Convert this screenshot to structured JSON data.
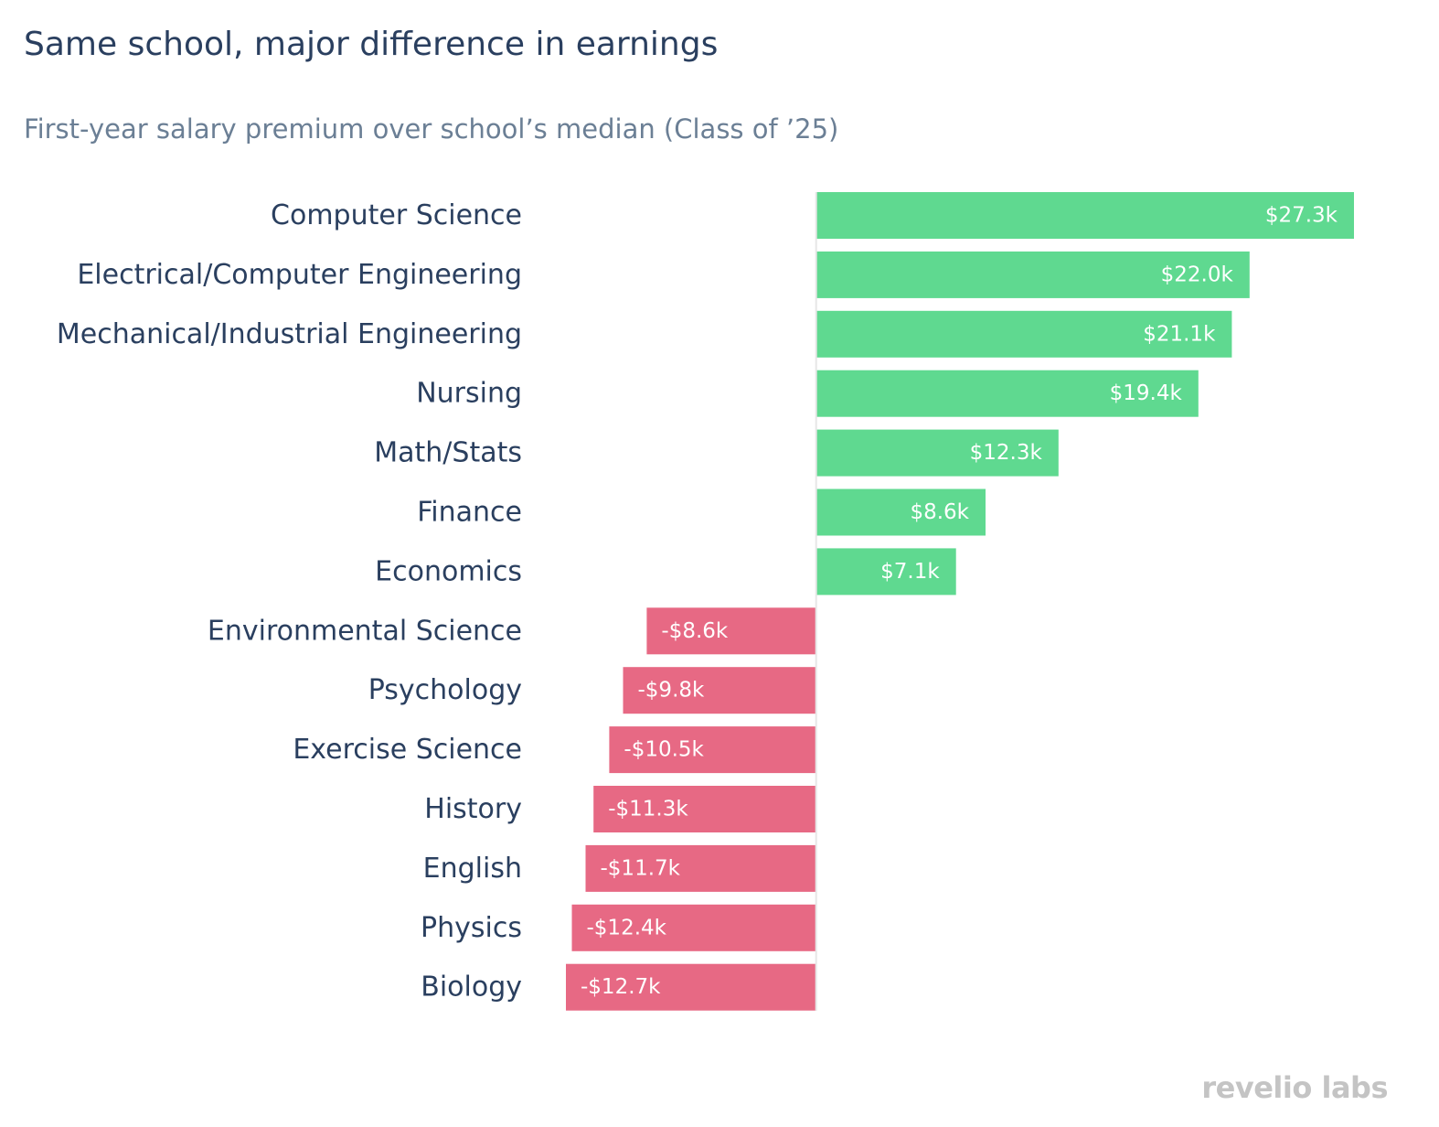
{
  "chart_data": {
    "type": "bar",
    "orientation": "horizontal",
    "title": "Same school, major difference in earnings",
    "subtitle": "First-year salary premium over school’s median (Class of ’25)",
    "xlabel": "",
    "ylabel": "",
    "categories": [
      "Computer Science",
      "Electrical/Computer Engineering",
      "Mechanical/Industrial Engineering",
      "Nursing",
      "Math/Stats",
      "Finance",
      "Economics",
      "Environmental Science",
      "Psychology",
      "Exercise Science",
      "History",
      "English",
      "Physics",
      "Biology"
    ],
    "values": [
      27.3,
      22.0,
      21.1,
      19.4,
      12.3,
      8.6,
      7.1,
      -8.6,
      -9.8,
      -10.5,
      -11.3,
      -11.7,
      -12.4,
      -12.7
    ],
    "labels": [
      "$27.3k",
      "$22.0k",
      "$21.1k",
      "$19.4k",
      "$12.3k",
      "$8.6k",
      "$7.1k",
      "-$8.6k",
      "-$9.8k",
      "-$10.5k",
      "-$11.3k",
      "-$11.7k",
      "-$12.4k",
      "-$12.7k"
    ],
    "units": "thousands USD",
    "xlim": [
      -12.7,
      27.3
    ],
    "grid": false,
    "legend": "none",
    "colors": {
      "positive": "#5fd990",
      "negative": "#e76984",
      "category_label": "#2a3f5f",
      "bar_label": "#ffffff",
      "zero_line": "#e6e6e6"
    }
  },
  "branding": {
    "logo_text": "revelio labs"
  }
}
